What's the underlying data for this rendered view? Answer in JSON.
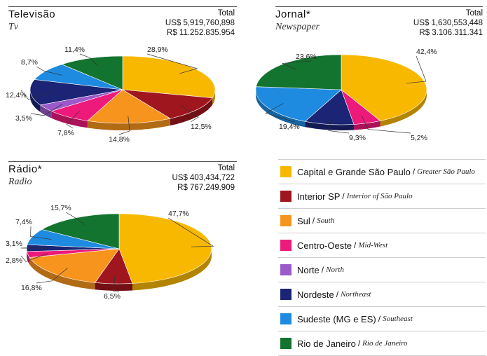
{
  "legend": [
    {
      "pt": "Capital e Grande São Paulo",
      "en": "Greater São Paulo",
      "color": "#F9B800"
    },
    {
      "pt": "Interior SP",
      "en": "Interior of São Paulo",
      "color": "#A0161E"
    },
    {
      "pt": "Sul",
      "en": "South",
      "color": "#F7941D"
    },
    {
      "pt": "Centro-Oeste",
      "en": "Mid-West",
      "color": "#EE1A7B"
    },
    {
      "pt": "Norte",
      "en": "North",
      "color": "#9B59C9"
    },
    {
      "pt": "Nordeste",
      "en": "Northeast",
      "color": "#1B2475"
    },
    {
      "pt": "Sudeste (MG e ES)",
      "en": "Southeast",
      "color": "#1E8BE0"
    },
    {
      "pt": "Rio de Janeiro",
      "en": "Rio de Janeiro",
      "color": "#13742F"
    }
  ],
  "chart_data": [
    {
      "type": "pie",
      "title": "Televisão",
      "subtitle": "Tv",
      "total_label": "Total",
      "total_usd": "US$ 5,919,760,898",
      "total_brl": "R$ 11.252.835.954",
      "slices": [
        {
          "region": "Capital e Grande São Paulo",
          "value": 28.9,
          "label": "28,9%"
        },
        {
          "region": "Interior SP",
          "value": 12.5,
          "label": "12,5%"
        },
        {
          "region": "Sul",
          "value": 14.8,
          "label": "14,8%"
        },
        {
          "region": "Centro-Oeste",
          "value": 7.8,
          "label": "7,8%"
        },
        {
          "region": "Norte",
          "value": 3.5,
          "label": "3,5%"
        },
        {
          "region": "Nordeste",
          "value": 12.4,
          "label": "12,4%"
        },
        {
          "region": "Sudeste (MG e ES)",
          "value": 8.7,
          "label": "8,7%"
        },
        {
          "region": "Rio de Janeiro",
          "value": 11.4,
          "label": "11,4%"
        }
      ]
    },
    {
      "type": "pie",
      "title": "Jornal*",
      "subtitle": "Newspaper",
      "total_label": "Total",
      "total_usd": "US$ 1,630,553,448",
      "total_brl": "R$ 3.106.311.341",
      "slices": [
        {
          "region": "Capital e Grande São Paulo",
          "value": 42.4,
          "label": "42,4%"
        },
        {
          "region": "Centro-Oeste",
          "value": 5.2,
          "label": "5,2%"
        },
        {
          "region": "Nordeste",
          "value": 9.3,
          "label": "9,3%"
        },
        {
          "region": "Sudeste (MG e ES)",
          "value": 19.4,
          "label": "19,4%"
        },
        {
          "region": "Rio de Janeiro",
          "value": 23.6,
          "label": "23,6%"
        }
      ]
    },
    {
      "type": "pie",
      "title": "Rádio*",
      "subtitle": "Radio",
      "total_label": "Total",
      "total_usd": "US$ 403,434,722",
      "total_brl": "R$ 767.249.909",
      "slices": [
        {
          "region": "Capital e Grande São Paulo",
          "value": 47.7,
          "label": "47,7%"
        },
        {
          "region": "Interior SP",
          "value": 6.5,
          "label": "6,5%"
        },
        {
          "region": "Sul",
          "value": 16.8,
          "label": "16,8%"
        },
        {
          "region": "Centro-Oeste",
          "value": 2.8,
          "label": "2,8%"
        },
        {
          "region": "Nordeste",
          "value": 3.1,
          "label": "3,1%"
        },
        {
          "region": "Sudeste (MG e ES)",
          "value": 7.4,
          "label": "7,4%"
        },
        {
          "region": "Rio de Janeiro",
          "value": 15.7,
          "label": "15,7%"
        }
      ]
    }
  ]
}
